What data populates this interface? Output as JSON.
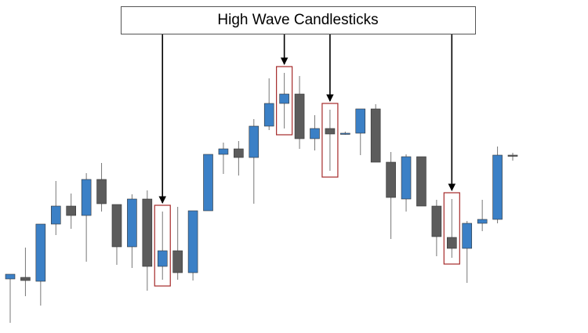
{
  "chart_data": {
    "type": "candlestick",
    "title": "High Wave Candlesticks",
    "up_color": "#3b80c6",
    "down_color": "#5c5c5c",
    "highlight_color": "#a52a2a",
    "highlights": [
      10,
      18,
      21,
      29
    ],
    "open": [
      69,
      71,
      66,
      139,
      162,
      150,
      196,
      164,
      110,
      171,
      85,
      105,
      77,
      156,
      228,
      235,
      224,
      264,
      293,
      305,
      248,
      261,
      254,
      255,
      286,
      218,
      171,
      225,
      162,
      122,
      108,
      140,
      145,
      227
    ],
    "close": [
      75,
      67,
      139,
      162,
      150,
      196,
      165,
      110,
      171,
      85,
      105,
      77,
      156,
      228,
      235,
      224,
      264,
      293,
      305,
      248,
      261,
      254,
      255,
      286,
      218,
      173,
      225,
      162,
      123,
      108,
      140,
      145,
      227,
      226
    ],
    "high": [
      75,
      109,
      139,
      194,
      178,
      204,
      217,
      164,
      177,
      182,
      155,
      161,
      156,
      228,
      243,
      245,
      273,
      325,
      332,
      328,
      278,
      285,
      257,
      286,
      292,
      231,
      228,
      225,
      170,
      171,
      143,
      170,
      238,
      230
    ],
    "low": [
      13,
      47,
      35,
      125,
      133,
      91,
      155,
      87,
      83,
      54,
      68,
      68,
      67,
      156,
      203,
      201,
      165,
      259,
      261,
      235,
      233,
      207,
      253,
      227,
      218,
      120,
      155,
      162,
      98,
      96,
      64,
      130,
      140,
      220
    ]
  }
}
